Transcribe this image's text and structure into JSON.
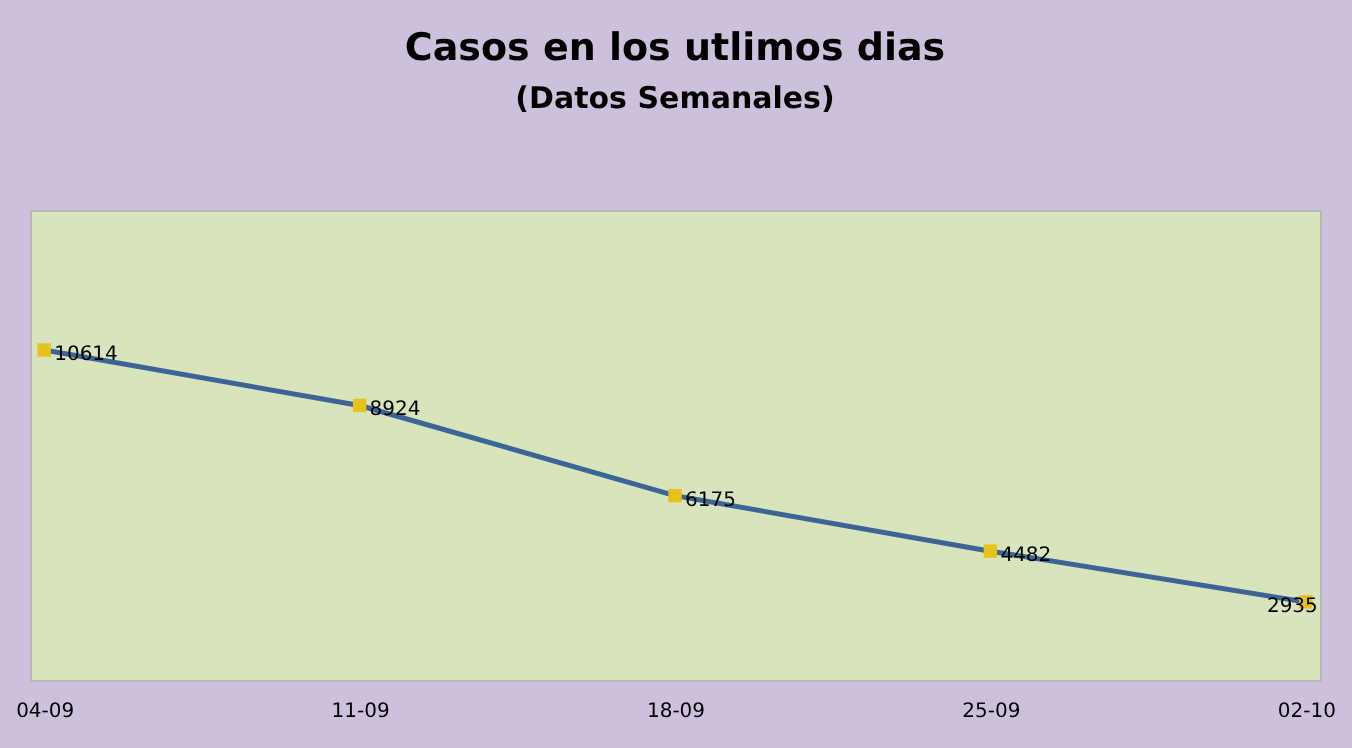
{
  "chart_data": {
    "type": "line",
    "title": "Casos en los utlimos dias",
    "subtitle": "(Datos Semanales)",
    "categories": [
      "04-09",
      "11-09",
      "18-09",
      "25-09",
      "02-10"
    ],
    "series": [
      {
        "color": "#3b6497",
        "values": [
          10614,
          8924,
          6175,
          4482,
          2935
        ]
      }
    ],
    "marker": "square",
    "line_style": "solid",
    "data_labels": true,
    "grid": false,
    "legend": false,
    "tick_labels": "x"
  }
}
